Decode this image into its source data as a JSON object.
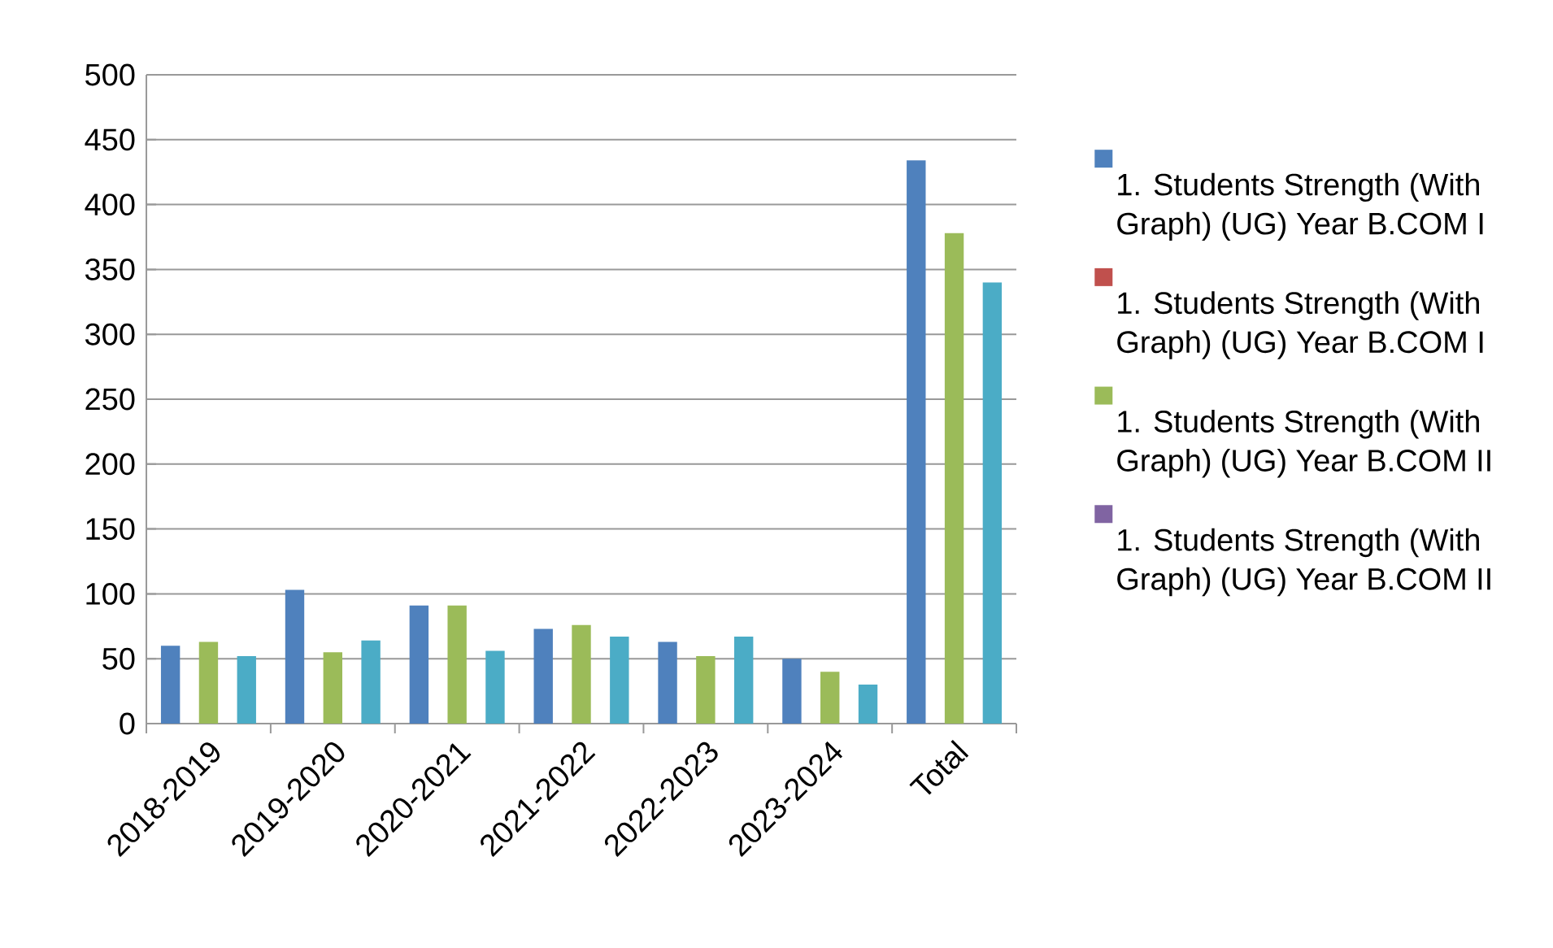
{
  "chart_data": {
    "type": "bar",
    "categories": [
      "2018-2019",
      "2019-2020",
      "2020-2021",
      "2021-2022",
      "2022-2023",
      "2023-2024",
      "Total"
    ],
    "series": [
      {
        "name": "1. Students Strength (With Graph) (UG) Year B.COM I",
        "color": "#4f81bd",
        "values": [
          60,
          103,
          91,
          73,
          63,
          50,
          434
        ]
      },
      {
        "name": "1. Students Strength (With Graph) (UG) Year B.COM I",
        "color": "#c0504d",
        "values": [
          null,
          null,
          null,
          null,
          null,
          null,
          null
        ]
      },
      {
        "name": "1. Students Strength (With Graph) (UG) Year B.COM II",
        "color": "#9bbb59",
        "values": [
          63,
          55,
          91,
          76,
          52,
          40,
          378
        ]
      },
      {
        "name": "1. Students Strength (With Graph) (UG) Year B.COM II",
        "color": "#8064a2",
        "values": [
          null,
          null,
          null,
          null,
          null,
          null,
          null
        ]
      },
      {
        "color": "#4bacc6",
        "values": [
          52,
          64,
          56,
          67,
          67,
          30,
          340
        ]
      }
    ],
    "ylim": [
      0,
      500
    ],
    "yticks": [
      0,
      50,
      100,
      150,
      200,
      250,
      300,
      350,
      400,
      450,
      500
    ],
    "grid": "y",
    "legend": "right"
  }
}
